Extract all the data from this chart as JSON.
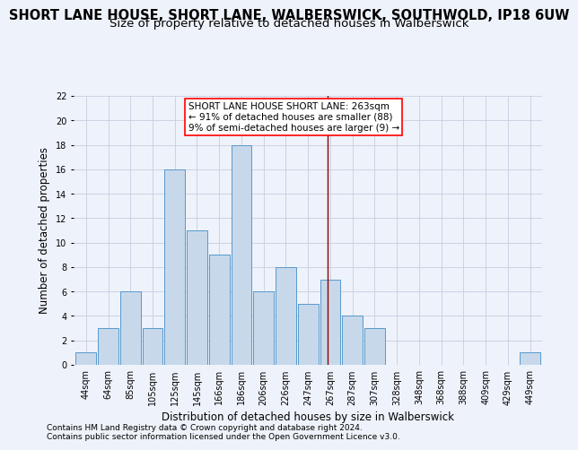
{
  "title": "SHORT LANE HOUSE, SHORT LANE, WALBERSWICK, SOUTHWOLD, IP18 6UW",
  "subtitle": "Size of property relative to detached houses in Walberswick",
  "xlabel": "Distribution of detached houses by size in Walberswick",
  "ylabel": "Number of detached properties",
  "footnote1": "Contains HM Land Registry data © Crown copyright and database right 2024.",
  "footnote2": "Contains public sector information licensed under the Open Government Licence v3.0.",
  "bin_labels": [
    "44sqm",
    "64sqm",
    "85sqm",
    "105sqm",
    "125sqm",
    "145sqm",
    "166sqm",
    "186sqm",
    "206sqm",
    "226sqm",
    "247sqm",
    "267sqm",
    "287sqm",
    "307sqm",
    "328sqm",
    "348sqm",
    "368sqm",
    "388sqm",
    "409sqm",
    "429sqm",
    "449sqm"
  ],
  "values": [
    1,
    3,
    6,
    3,
    16,
    11,
    9,
    18,
    6,
    8,
    5,
    7,
    4,
    3,
    0,
    0,
    0,
    0,
    0,
    0,
    1
  ],
  "bar_color": "#c8d8eb",
  "bar_edge_color": "#5599cc",
  "bar_edge_width": 0.7,
  "grid_color": "#c8cce0",
  "background_color": "#eef2fa",
  "red_line_index": 10.9,
  "annotation_line1": "SHORT LANE HOUSE SHORT LANE: 263sqm",
  "annotation_line2": "← 91% of detached houses are smaller (88)",
  "annotation_line3": "9% of semi-detached houses are larger (9) →",
  "ylim": [
    0,
    22
  ],
  "yticks": [
    0,
    2,
    4,
    6,
    8,
    10,
    12,
    14,
    16,
    18,
    20,
    22
  ],
  "title_fontsize": 10.5,
  "subtitle_fontsize": 9.5,
  "ylabel_fontsize": 8.5,
  "xlabel_fontsize": 8.5,
  "tick_fontsize": 7,
  "annotation_fontsize": 7.5,
  "footnote_fontsize": 6.5
}
